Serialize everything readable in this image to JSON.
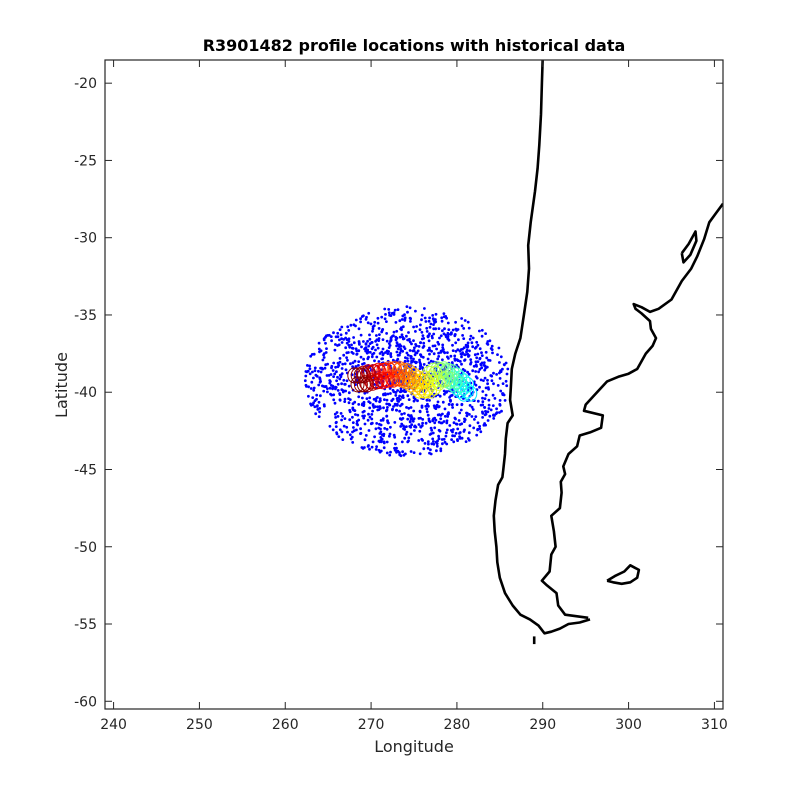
{
  "chart_data": {
    "type": "scatter",
    "title": "R3901482 profile locations with historical data",
    "xlabel": "Longitude",
    "ylabel": "Latitude",
    "xlim": [
      239,
      311
    ],
    "ylim": [
      -60.5,
      -18.5
    ],
    "xticks": [
      240,
      250,
      260,
      270,
      280,
      290,
      300,
      310
    ],
    "yticks": [
      -20,
      -25,
      -30,
      -35,
      -40,
      -45,
      -50,
      -55,
      -60
    ],
    "xtick_labels": [
      "240",
      "250",
      "260",
      "270",
      "280",
      "290",
      "300",
      "310"
    ],
    "ytick_labels": [
      "-20",
      "-25",
      "-30",
      "-35",
      "-40",
      "-45",
      "-50",
      "-55",
      "-60"
    ],
    "grid": false,
    "legend": "none",
    "series": [
      {
        "role": "historical profiles",
        "color": "#0000ff",
        "marker": "dot",
        "count": 1500,
        "cloud_center": [
          273.8,
          -39.3
        ],
        "cloud_extent_lon": [
          261,
          285
        ],
        "cloud_extent_lat": [
          -44.2,
          -34.5
        ]
      },
      {
        "role": "float trajectory (colored by profile order)",
        "colormap": "jet",
        "color_order": "blue (first) to red (last)",
        "points": [
          [
            281.0,
            -39.8
          ],
          [
            280.6,
            -39.6
          ],
          [
            280.2,
            -39.4
          ],
          [
            279.8,
            -39.2
          ],
          [
            279.3,
            -39.0
          ],
          [
            278.8,
            -38.9
          ],
          [
            278.3,
            -38.8
          ],
          [
            277.8,
            -38.9
          ],
          [
            277.3,
            -39.1
          ],
          [
            276.8,
            -39.4
          ],
          [
            276.3,
            -39.6
          ],
          [
            275.8,
            -39.6
          ],
          [
            275.3,
            -39.4
          ],
          [
            274.8,
            -39.2
          ],
          [
            274.3,
            -39.0
          ],
          [
            273.8,
            -38.9
          ],
          [
            273.2,
            -38.8
          ],
          [
            272.6,
            -38.8
          ],
          [
            272.0,
            -38.9
          ],
          [
            271.4,
            -38.9
          ],
          [
            270.8,
            -39.0
          ],
          [
            270.2,
            -39.0
          ],
          [
            269.6,
            -39.1
          ],
          [
            269.0,
            -39.2
          ],
          [
            268.6,
            -39.2
          ]
        ]
      }
    ],
    "coastline": {
      "color": "#000000",
      "polylines": [
        [
          [
            290.0,
            -18.2
          ],
          [
            289.9,
            -20.0
          ],
          [
            289.8,
            -22.0
          ],
          [
            289.6,
            -24.0
          ],
          [
            289.4,
            -25.5
          ],
          [
            289.1,
            -27.0
          ],
          [
            288.6,
            -29.0
          ],
          [
            288.3,
            -30.5
          ],
          [
            288.4,
            -32.0
          ],
          [
            288.2,
            -33.5
          ],
          [
            287.8,
            -35.0
          ],
          [
            287.4,
            -36.5
          ],
          [
            286.8,
            -37.5
          ],
          [
            286.4,
            -38.5
          ],
          [
            286.3,
            -39.5
          ],
          [
            286.2,
            -40.5
          ],
          [
            286.5,
            -41.5
          ],
          [
            285.9,
            -42.0
          ],
          [
            285.7,
            -43.0
          ],
          [
            285.6,
            -44.0
          ],
          [
            285.4,
            -45.0
          ],
          [
            285.3,
            -45.5
          ],
          [
            284.8,
            -46.0
          ],
          [
            284.5,
            -47.0
          ],
          [
            284.3,
            -48.0
          ],
          [
            284.4,
            -49.0
          ],
          [
            284.6,
            -50.0
          ],
          [
            284.7,
            -51.0
          ],
          [
            285.0,
            -52.0
          ],
          [
            285.6,
            -53.0
          ],
          [
            286.5,
            -53.8
          ],
          [
            287.4,
            -54.4
          ],
          [
            288.5,
            -54.7
          ],
          [
            289.5,
            -55.1
          ],
          [
            290.2,
            -55.6
          ],
          [
            291.0,
            -55.5
          ],
          [
            292.0,
            -55.3
          ],
          [
            293.0,
            -55.0
          ],
          [
            294.3,
            -54.9
          ],
          [
            295.5,
            -54.7
          ]
        ],
        [
          [
            295.3,
            -54.6
          ],
          [
            294.0,
            -54.5
          ],
          [
            292.6,
            -54.4
          ],
          [
            291.8,
            -53.8
          ],
          [
            291.6,
            -53.0
          ],
          [
            290.5,
            -52.5
          ],
          [
            289.9,
            -52.2
          ],
          [
            290.8,
            -51.6
          ],
          [
            291.0,
            -50.5
          ],
          [
            291.5,
            -50.0
          ],
          [
            291.3,
            -49.0
          ],
          [
            291.0,
            -48.0
          ],
          [
            292.0,
            -47.5
          ],
          [
            292.2,
            -46.5
          ],
          [
            292.1,
            -45.8
          ],
          [
            292.6,
            -45.3
          ],
          [
            292.4,
            -44.8
          ],
          [
            293.0,
            -44.0
          ],
          [
            294.0,
            -43.5
          ],
          [
            294.3,
            -42.8
          ],
          [
            295.5,
            -42.6
          ],
          [
            296.8,
            -42.3
          ],
          [
            297.0,
            -41.5
          ],
          [
            294.8,
            -41.2
          ],
          [
            295.0,
            -40.8
          ],
          [
            296.0,
            -40.2
          ],
          [
            297.5,
            -39.3
          ],
          [
            298.8,
            -39.0
          ],
          [
            300.0,
            -38.8
          ],
          [
            301.0,
            -38.5
          ],
          [
            302.0,
            -37.5
          ],
          [
            302.8,
            -37.0
          ],
          [
            303.2,
            -36.5
          ],
          [
            302.6,
            -35.9
          ],
          [
            302.5,
            -35.4
          ],
          [
            301.5,
            -34.9
          ],
          [
            300.8,
            -34.6
          ],
          [
            300.6,
            -34.3
          ],
          [
            301.5,
            -34.5
          ],
          [
            302.5,
            -34.8
          ],
          [
            303.5,
            -34.6
          ],
          [
            305.0,
            -34.0
          ],
          [
            306.2,
            -32.8
          ],
          [
            307.3,
            -32.0
          ],
          [
            308.0,
            -31.2
          ],
          [
            308.8,
            -30.1
          ],
          [
            309.4,
            -29.0
          ],
          [
            310.2,
            -28.4
          ],
          [
            311.0,
            -27.8
          ]
        ],
        [
          [
            306.2,
            -31.0
          ],
          [
            307.0,
            -30.4
          ],
          [
            307.8,
            -29.6
          ],
          [
            307.9,
            -30.2
          ],
          [
            307.2,
            -31.1
          ],
          [
            306.4,
            -31.6
          ],
          [
            306.2,
            -31.0
          ]
        ],
        [
          [
            297.5,
            -52.2
          ],
          [
            298.4,
            -51.9
          ],
          [
            299.5,
            -51.6
          ],
          [
            300.2,
            -51.2
          ],
          [
            301.2,
            -51.5
          ],
          [
            301.0,
            -52.0
          ],
          [
            300.2,
            -52.3
          ],
          [
            299.2,
            -52.4
          ],
          [
            298.2,
            -52.3
          ],
          [
            297.5,
            -52.2
          ]
        ],
        [
          [
            289.0,
            -55.8
          ],
          [
            289.0,
            -56.3
          ]
        ]
      ]
    }
  }
}
